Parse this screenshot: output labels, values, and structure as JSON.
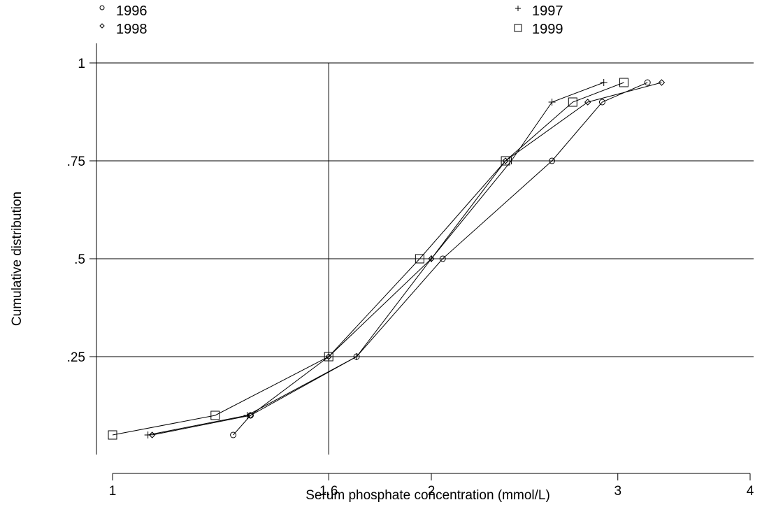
{
  "chart_data": {
    "type": "line",
    "title": "",
    "xlabel": "Serum phosphate concentration (mmol/L)",
    "ylabel": "Cumulative distribution",
    "x_scale": "log",
    "xlim": [
      1,
      4
    ],
    "ylim": [
      0.05,
      1
    ],
    "x_ticks": [
      1,
      1.6,
      2,
      3,
      4
    ],
    "x_tick_labels": [
      "1",
      "1.6",
      "2",
      "3",
      "4"
    ],
    "y_ticks": [
      0.25,
      0.5,
      0.75,
      1
    ],
    "y_tick_labels": [
      ".25",
      ".5",
      ".75",
      "1"
    ],
    "reference_line_x": 1.6,
    "grid": "horizontal",
    "legend_position": "top",
    "series": [
      {
        "name": "1996",
        "marker": "circle",
        "x": [
          1.3,
          1.35,
          1.7,
          2.05,
          2.6,
          2.9,
          3.2
        ],
        "y": [
          0.05,
          0.1,
          0.25,
          0.5,
          0.75,
          0.9,
          0.95
        ]
      },
      {
        "name": "1997",
        "marker": "plus",
        "x": [
          1.08,
          1.34,
          1.7,
          2.0,
          2.38,
          2.6,
          2.91
        ],
        "y": [
          0.05,
          0.1,
          0.25,
          0.5,
          0.75,
          0.9,
          0.95
        ]
      },
      {
        "name": "1998",
        "marker": "diamond",
        "x": [
          1.09,
          1.35,
          1.6,
          2.0,
          2.35,
          2.81,
          3.3
        ],
        "y": [
          0.05,
          0.1,
          0.25,
          0.5,
          0.75,
          0.9,
          0.95
        ]
      },
      {
        "name": "1999",
        "marker": "square",
        "x": [
          1.0,
          1.25,
          1.6,
          1.95,
          2.35,
          2.72,
          3.04
        ],
        "y": [
          0.05,
          0.1,
          0.25,
          0.5,
          0.75,
          0.9,
          0.95
        ]
      }
    ]
  }
}
